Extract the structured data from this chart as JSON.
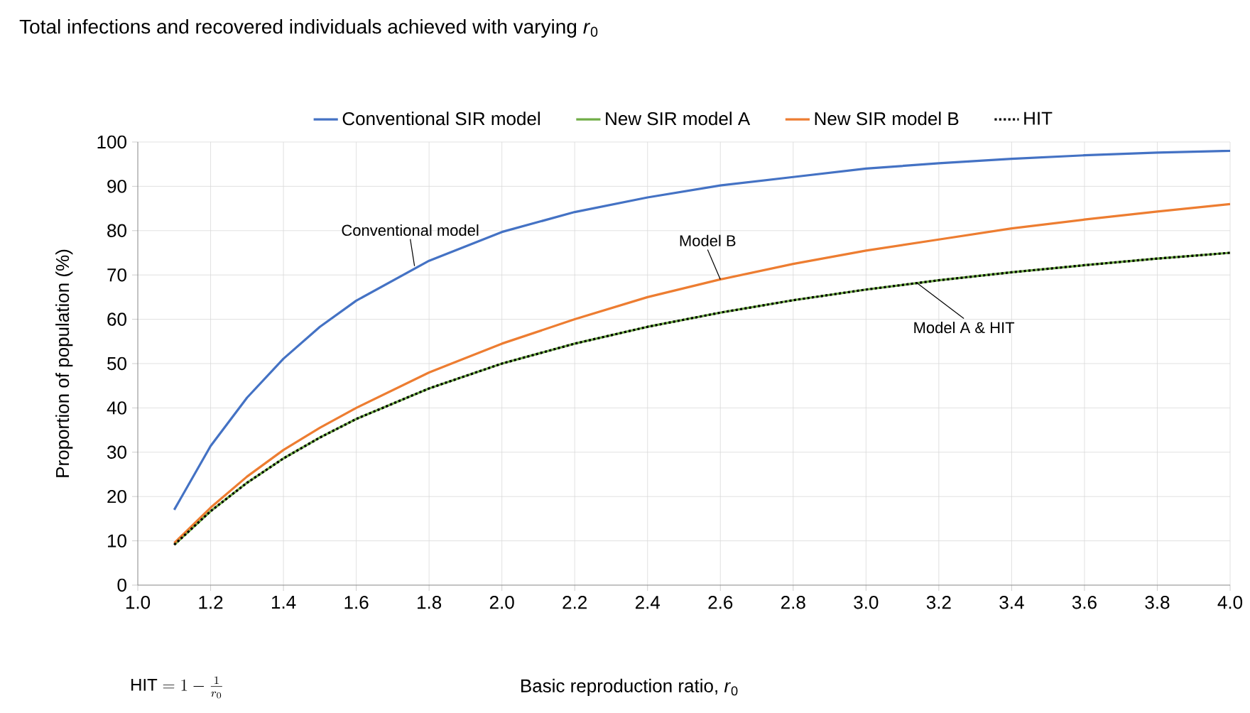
{
  "chart_data": {
    "type": "line",
    "title": "Total infections and recovered individuals achieved with varying *r*$_{0}$",
    "xlabel": "Basic reproduction ratio, *r*$_{0}$",
    "ylabel": "Proportion of population (%)",
    "x": [
      1.1,
      1.2,
      1.3,
      1.4,
      1.5,
      1.6,
      1.8,
      2.0,
      2.2,
      2.4,
      2.6,
      2.8,
      3.0,
      3.2,
      3.4,
      3.6,
      3.8,
      4.0
    ],
    "series": [
      {
        "name": "Conventional SIR model",
        "color": "#4472c4",
        "values": [
          17,
          31.4,
          42.3,
          51.1,
          58.3,
          64.2,
          73.2,
          79.7,
          84.2,
          87.5,
          90.2,
          92.1,
          94.0,
          95.2,
          96.2,
          97.0,
          97.6,
          98.0
        ]
      },
      {
        "name": "New SIR model A",
        "color": "#70ad47",
        "values": [
          9.1,
          16.7,
          23.1,
          28.6,
          33.3,
          37.5,
          44.4,
          50,
          54.5,
          58.3,
          61.5,
          64.3,
          66.7,
          68.8,
          70.6,
          72.2,
          73.7,
          75
        ]
      },
      {
        "name": "New SIR model B",
        "color": "#ed7d31",
        "values": [
          9.5,
          17.5,
          24.5,
          30.5,
          35.5,
          40,
          48,
          54.5,
          60,
          65,
          69,
          72.5,
          75.5,
          78,
          80.5,
          82.5,
          84.3,
          86
        ]
      },
      {
        "name": "HIT",
        "color": "#000000",
        "line_style": "dotted",
        "values": [
          9.1,
          16.7,
          23.1,
          28.6,
          33.3,
          37.5,
          44.4,
          50,
          54.5,
          58.3,
          61.5,
          64.3,
          66.7,
          68.8,
          70.6,
          72.2,
          73.7,
          75
        ]
      }
    ],
    "xlim": [
      1.0,
      4.0
    ],
    "xticks": [
      {
        "value": 1.0,
        "label": "1.0"
      },
      1.2,
      1.4,
      1.6,
      1.8,
      {
        "value": 2.0,
        "label": "2.0"
      },
      2.2,
      2.4,
      2.6,
      2.8,
      {
        "value": 3.0,
        "label": "3.0"
      },
      3.2,
      3.4,
      3.6,
      3.8,
      {
        "value": 4.0,
        "label": "4.0"
      }
    ],
    "ylim": [
      0,
      100
    ],
    "yticks": [
      0,
      10,
      20,
      30,
      40,
      50,
      60,
      70,
      80,
      90,
      100
    ],
    "grid": true,
    "legend": "top",
    "marker": "none",
    "line_style": "solid",
    "annotations": [
      {
        "text": "Conventional model",
        "x": 1.76,
        "y": 72
      },
      {
        "text": "Model B",
        "x": 2.6,
        "y": 69
      },
      {
        "text": "Model A & HIT",
        "x": 3.14,
        "y": 68.2
      },
      "\\mathrm{HIT} = 1 - \\frac{1}{r_0}"
    ]
  }
}
